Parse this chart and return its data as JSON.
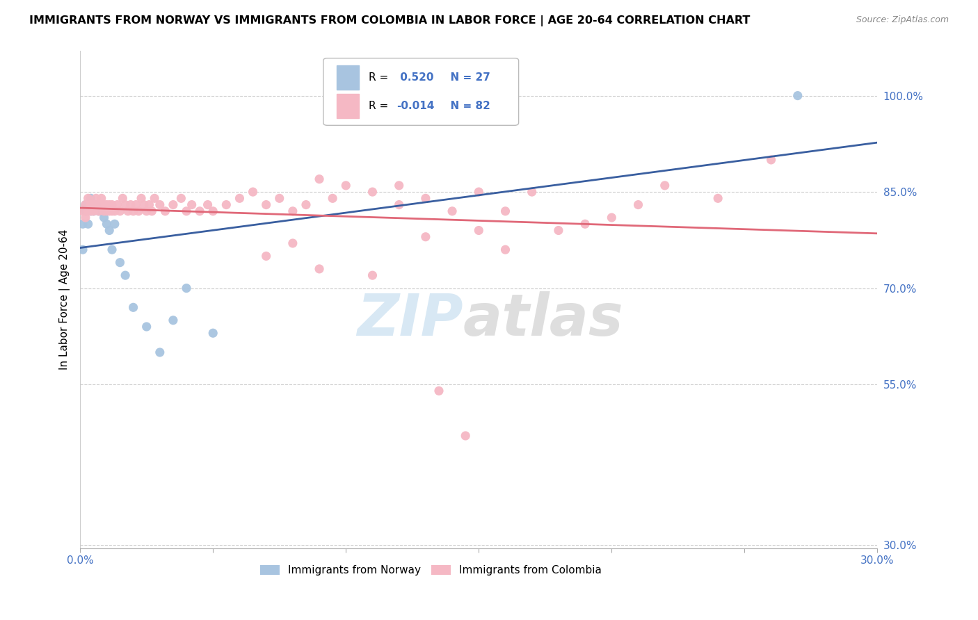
{
  "title": "IMMIGRANTS FROM NORWAY VS IMMIGRANTS FROM COLOMBIA IN LABOR FORCE | AGE 20-64 CORRELATION CHART",
  "source": "Source: ZipAtlas.com",
  "ylabel": "In Labor Force | Age 20-64",
  "xlim": [
    0.0,
    0.3
  ],
  "ylim": [
    0.295,
    1.07
  ],
  "yticks": [
    0.3,
    0.55,
    0.7,
    0.85,
    1.0
  ],
  "ytick_labels": [
    "30.0%",
    "55.0%",
    "70.0%",
    "85.0%",
    "100.0%"
  ],
  "norway_color": "#a8c4e0",
  "colombia_color": "#f5b8c4",
  "norway_R": 0.52,
  "norway_N": 27,
  "colombia_R": -0.014,
  "colombia_N": 82,
  "norway_line_color": "#3a5fa0",
  "colombia_line_color": "#e06878",
  "norway_x": [
    0.001,
    0.001,
    0.002,
    0.002,
    0.003,
    0.003,
    0.004,
    0.004,
    0.005,
    0.005,
    0.006,
    0.007,
    0.008,
    0.009,
    0.01,
    0.011,
    0.012,
    0.013,
    0.015,
    0.017,
    0.02,
    0.025,
    0.03,
    0.035,
    0.04,
    0.05,
    0.27
  ],
  "norway_y": [
    0.76,
    0.8,
    0.82,
    0.83,
    0.8,
    0.83,
    0.82,
    0.84,
    0.83,
    0.82,
    0.83,
    0.82,
    0.82,
    0.81,
    0.8,
    0.79,
    0.76,
    0.8,
    0.74,
    0.72,
    0.67,
    0.64,
    0.6,
    0.65,
    0.7,
    0.63,
    1.0
  ],
  "colombia_x": [
    0.001,
    0.002,
    0.002,
    0.003,
    0.003,
    0.004,
    0.004,
    0.005,
    0.005,
    0.006,
    0.006,
    0.007,
    0.007,
    0.008,
    0.008,
    0.009,
    0.009,
    0.01,
    0.01,
    0.011,
    0.011,
    0.012,
    0.012,
    0.013,
    0.014,
    0.015,
    0.016,
    0.017,
    0.018,
    0.019,
    0.02,
    0.021,
    0.022,
    0.023,
    0.024,
    0.025,
    0.026,
    0.027,
    0.028,
    0.03,
    0.032,
    0.035,
    0.038,
    0.04,
    0.042,
    0.045,
    0.048,
    0.05,
    0.055,
    0.06,
    0.065,
    0.07,
    0.075,
    0.08,
    0.085,
    0.09,
    0.095,
    0.1,
    0.11,
    0.12,
    0.13,
    0.14,
    0.15,
    0.16,
    0.17,
    0.18,
    0.19,
    0.2,
    0.21,
    0.22,
    0.24,
    0.26,
    0.13,
    0.07,
    0.08,
    0.15,
    0.16,
    0.09,
    0.11,
    0.12,
    0.135,
    0.145
  ],
  "colombia_y": [
    0.82,
    0.83,
    0.81,
    0.82,
    0.84,
    0.83,
    0.82,
    0.83,
    0.82,
    0.84,
    0.83,
    0.82,
    0.83,
    0.83,
    0.84,
    0.82,
    0.83,
    0.82,
    0.83,
    0.82,
    0.83,
    0.82,
    0.83,
    0.82,
    0.83,
    0.82,
    0.84,
    0.83,
    0.82,
    0.83,
    0.82,
    0.83,
    0.82,
    0.84,
    0.83,
    0.82,
    0.83,
    0.82,
    0.84,
    0.83,
    0.82,
    0.83,
    0.84,
    0.82,
    0.83,
    0.82,
    0.83,
    0.82,
    0.83,
    0.84,
    0.85,
    0.83,
    0.84,
    0.82,
    0.83,
    0.87,
    0.84,
    0.86,
    0.85,
    0.86,
    0.84,
    0.82,
    0.85,
    0.82,
    0.85,
    0.79,
    0.8,
    0.81,
    0.83,
    0.86,
    0.84,
    0.9,
    0.78,
    0.75,
    0.77,
    0.79,
    0.76,
    0.73,
    0.72,
    0.83,
    0.54,
    0.47
  ],
  "legend_R_color": "#4472c4",
  "legend_border_color": "#bbbbbb",
  "watermark_zip_color": "#c8dff0",
  "watermark_atlas_color": "#d0d0d0"
}
